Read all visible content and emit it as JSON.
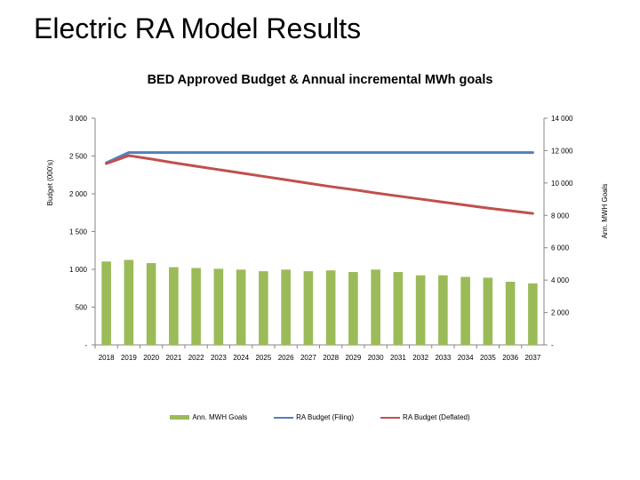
{
  "slide": {
    "title": "Electric RA Model Results"
  },
  "chart_data": {
    "type": "bar",
    "title": "BED Approved Budget & Annual incremental MWh goals",
    "ylabel": "Budget (000's)",
    "y2label": "Ann. MWH Goals",
    "categories": [
      "2018",
      "2019",
      "2020",
      "2021",
      "2022",
      "2023",
      "2024",
      "2025",
      "2026",
      "2027",
      "2028",
      "2029",
      "2030",
      "2031",
      "2032",
      "2033",
      "2034",
      "2035",
      "2036",
      "2037"
    ],
    "ylim": [
      0,
      3000
    ],
    "y_ticks": [
      0,
      500,
      1000,
      1500,
      2000,
      2500,
      3000
    ],
    "y_tick_labels": [
      "-",
      "500",
      "1 000",
      "1 500",
      "2 000",
      "2 500",
      "3 000"
    ],
    "y2lim": [
      0,
      14000
    ],
    "y2_ticks": [
      0,
      2000,
      4000,
      6000,
      8000,
      10000,
      12000,
      14000
    ],
    "y2_tick_labels": [
      "-",
      "2 000",
      "4 000",
      "6 000",
      "8 000",
      "10 000",
      "12 000",
      "14 000"
    ],
    "series": [
      {
        "name": "Ann. MWH Goals",
        "kind": "bar",
        "axis": "right",
        "color": "#9bbb59",
        "values": [
          5150,
          5250,
          5050,
          4800,
          4750,
          4700,
          4650,
          4550,
          4650,
          4550,
          4600,
          4500,
          4650,
          4500,
          4300,
          4300,
          4200,
          4150,
          3900,
          3800
        ]
      },
      {
        "name": "RA Budget (Filing)",
        "kind": "line",
        "axis": "left",
        "color": "#4f81bd",
        "values": [
          2410,
          2545,
          2545,
          2545,
          2545,
          2545,
          2545,
          2545,
          2545,
          2545,
          2545,
          2545,
          2545,
          2545,
          2545,
          2545,
          2545,
          2545,
          2545,
          2545
        ]
      },
      {
        "name": "RA Budget (Deflated)",
        "kind": "line",
        "axis": "left",
        "color": "#c0504d",
        "values": [
          2400,
          2505,
          2460,
          2410,
          2365,
          2320,
          2275,
          2230,
          2185,
          2140,
          2095,
          2055,
          2010,
          1970,
          1930,
          1890,
          1850,
          1810,
          1775,
          1740
        ]
      }
    ],
    "grid": false,
    "legend_position": "bottom"
  }
}
